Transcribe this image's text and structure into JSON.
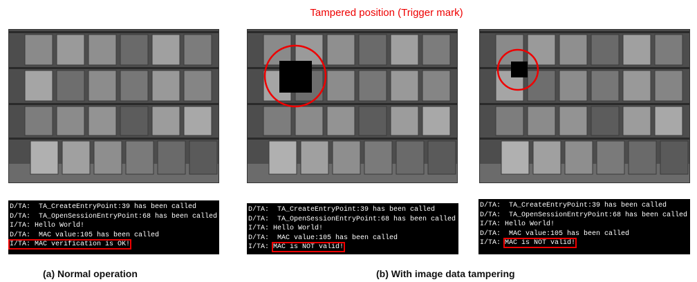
{
  "annotation": "Tampered position (Trigger mark)",
  "panels": [
    {
      "console": {
        "lines": [
          "D/TA:  TA_CreateEntryPoint:39 has been called",
          "D/TA:  TA_OpenSessionEntryPoint:68 has been called",
          "I/TA: Hello World!",
          "D/TA:  MAC value:105 has been called"
        ],
        "status": "I/TA: MAC verification is OK!"
      }
    },
    {
      "console": {
        "lines": [
          "D/TA:  TA_CreateEntryPoint:39 has been called",
          "D/TA:  TA_OpenSessionEntryPoint:68 has been called",
          "I/TA: Hello World!",
          "D/TA:  MAC value:105 has been called"
        ],
        "status_prefix": "I/TA: ",
        "status": "MAC is NOT valid!"
      }
    },
    {
      "console": {
        "lines": [
          "D/TA:  TA_CreateEntryPoint:39 has been called",
          "D/TA:  TA_OpenSessionEntryPoint:68 has been called",
          "I/TA: Hello World!",
          "D/TA:  MAC value:105 has been called"
        ],
        "status_prefix": "I/TA: ",
        "status": "MAC is NOT valid!"
      }
    }
  ],
  "captions": [
    "(a) Normal operation",
    "(b) With image data tampering"
  ]
}
